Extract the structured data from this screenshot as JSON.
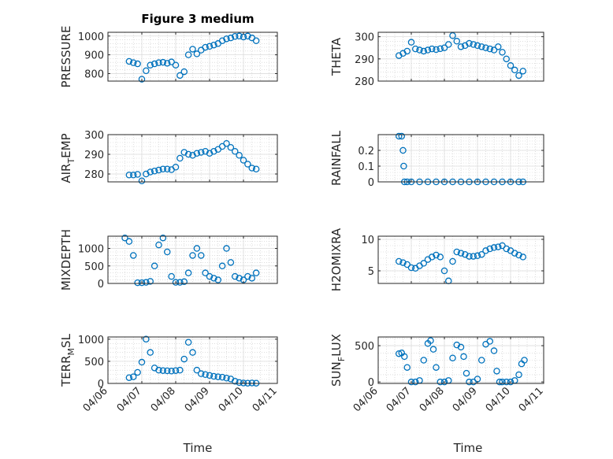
{
  "figure_title": "Figure 3 medium",
  "x_axis_label": "Time",
  "colors": {
    "marker": "#0072BD",
    "axis": "#262626",
    "grid_major": "#dddddd",
    "grid_minor": "#c9c9c9"
  },
  "chart_data": [
    {
      "type": "scatter",
      "panel": "top-left",
      "title": "Figure 3 medium",
      "ylabel": "PRESSURE",
      "ylabel_parts": [
        "PRESSURE"
      ],
      "ylim": [
        760,
        1020
      ],
      "yticks": [
        800,
        900,
        1000
      ],
      "xlim": [
        "04/06",
        "04/11"
      ],
      "xticks": [],
      "xlabel": "",
      "grid": true,
      "minor_grid": true,
      "x": [
        "04/06 15:00",
        "04/06 18:00",
        "04/06 21:00",
        "04/07 00:00",
        "04/07 03:00",
        "04/07 06:00",
        "04/07 09:00",
        "04/07 12:00",
        "04/07 15:00",
        "04/07 18:00",
        "04/07 21:00",
        "04/08 00:00",
        "04/08 03:00",
        "04/08 06:00",
        "04/08 09:00",
        "04/08 12:00",
        "04/08 15:00",
        "04/08 18:00",
        "04/08 21:00",
        "04/09 00:00",
        "04/09 03:00",
        "04/09 06:00",
        "04/09 09:00",
        "04/09 12:00",
        "04/09 15:00",
        "04/09 18:00",
        "04/09 21:00",
        "04/10 00:00",
        "04/10 03:00",
        "04/10 06:00",
        "04/10 09:00"
      ],
      "y": [
        865,
        858,
        852,
        770,
        815,
        845,
        852,
        858,
        860,
        855,
        862,
        845,
        790,
        810,
        900,
        930,
        905,
        925,
        940,
        945,
        952,
        960,
        975,
        985,
        990,
        998,
        1000,
        995,
        1000,
        990,
        975
      ]
    },
    {
      "type": "scatter",
      "panel": "top-right",
      "title": "",
      "ylabel": "THETA",
      "ylabel_parts": [
        "THETA"
      ],
      "ylim": [
        280,
        302
      ],
      "yticks": [
        280,
        290,
        300
      ],
      "xlim": [
        "04/06",
        "04/11"
      ],
      "xticks": [],
      "xlabel": "",
      "grid": true,
      "minor_grid": true,
      "x": [
        "04/06 15:00",
        "04/06 18:00",
        "04/06 21:00",
        "04/07 00:00",
        "04/07 03:00",
        "04/07 06:00",
        "04/07 09:00",
        "04/07 12:00",
        "04/07 15:00",
        "04/07 18:00",
        "04/07 21:00",
        "04/08 00:00",
        "04/08 03:00",
        "04/08 06:00",
        "04/08 09:00",
        "04/08 12:00",
        "04/08 15:00",
        "04/08 18:00",
        "04/08 21:00",
        "04/09 00:00",
        "04/09 03:00",
        "04/09 06:00",
        "04/09 09:00",
        "04/09 12:00",
        "04/09 15:00",
        "04/09 18:00",
        "04/09 21:00",
        "04/10 00:00",
        "04/10 03:00",
        "04/10 06:00",
        "04/10 09:00"
      ],
      "y": [
        291.5,
        292.5,
        293.5,
        297.5,
        294.5,
        294,
        293.5,
        294,
        294.5,
        294.2,
        294.6,
        295,
        296.5,
        300.5,
        298,
        295.5,
        296,
        297,
        296.5,
        296,
        295.5,
        295,
        294.5,
        294,
        295.5,
        293,
        290,
        287,
        285,
        282.5,
        284.5
      ]
    },
    {
      "type": "scatter",
      "panel": "row2-left",
      "title": "",
      "ylabel": "AIR_TEMP",
      "ylabel_parts": [
        "AIR",
        "T",
        "EMP"
      ],
      "ylim": [
        276,
        300
      ],
      "yticks": [
        280,
        290,
        300
      ],
      "xlim": [
        "04/06",
        "04/11"
      ],
      "xticks": [],
      "xlabel": "",
      "grid": true,
      "minor_grid": true,
      "x": [
        "04/06 15:00",
        "04/06 18:00",
        "04/06 21:00",
        "04/07 00:00",
        "04/07 03:00",
        "04/07 06:00",
        "04/07 09:00",
        "04/07 12:00",
        "04/07 15:00",
        "04/07 18:00",
        "04/07 21:00",
        "04/08 00:00",
        "04/08 03:00",
        "04/08 06:00",
        "04/08 09:00",
        "04/08 12:00",
        "04/08 15:00",
        "04/08 18:00",
        "04/08 21:00",
        "04/09 00:00",
        "04/09 03:00",
        "04/09 06:00",
        "04/09 09:00",
        "04/09 12:00",
        "04/09 15:00",
        "04/09 18:00",
        "04/09 21:00",
        "04/10 00:00",
        "04/10 03:00",
        "04/10 06:00",
        "04/10 09:00"
      ],
      "y": [
        279.5,
        279.5,
        279.8,
        276.5,
        280,
        281,
        281.5,
        282,
        282.5,
        282.5,
        282.2,
        283.5,
        288,
        291,
        290,
        289.5,
        290.5,
        291,
        291.5,
        290.5,
        291.5,
        292.5,
        294,
        295.5,
        293.5,
        291.5,
        289.5,
        287,
        285,
        283,
        282.5
      ]
    },
    {
      "type": "scatter",
      "panel": "row2-right",
      "title": "",
      "ylabel": "RAINFALL",
      "ylabel_parts": [
        "RAINFALL"
      ],
      "ylim": [
        0,
        0.3
      ],
      "yticks": [
        0,
        0.1,
        0.2
      ],
      "xlim": [
        "04/06",
        "04/11"
      ],
      "xticks": [],
      "xlabel": "",
      "grid": true,
      "minor_grid": true,
      "x": [
        "04/06 15:00",
        "04/06 17:00",
        "04/06 18:00",
        "04/06 18:30",
        "04/06 19:00",
        "04/06 21:00",
        "04/07 00:00",
        "04/07 06:00",
        "04/07 12:00",
        "04/07 18:00",
        "04/08 00:00",
        "04/08 06:00",
        "04/08 12:00",
        "04/08 18:00",
        "04/09 00:00",
        "04/09 06:00",
        "04/09 12:00",
        "04/09 18:00",
        "04/10 00:00",
        "04/10 06:00",
        "04/10 09:00"
      ],
      "y": [
        0.29,
        0.29,
        0.2,
        0.1,
        0,
        0,
        0,
        0,
        0,
        0,
        0,
        0,
        0,
        0,
        0,
        0,
        0,
        0,
        0,
        0,
        0
      ]
    },
    {
      "type": "scatter",
      "panel": "row3-left",
      "title": "",
      "ylabel": "MIXDEPTH",
      "ylabel_parts": [
        "MIXDEPTH"
      ],
      "ylim": [
        0,
        1350
      ],
      "yticks": [
        0,
        500,
        1000
      ],
      "xlim": [
        "04/06",
        "04/11"
      ],
      "xticks": [],
      "xlabel": "",
      "grid": true,
      "minor_grid": true,
      "x": [
        "04/06 12:00",
        "04/06 15:00",
        "04/06 18:00",
        "04/06 21:00",
        "04/07 00:00",
        "04/07 03:00",
        "04/07 06:00",
        "04/07 09:00",
        "04/07 12:00",
        "04/07 15:00",
        "04/07 18:00",
        "04/07 21:00",
        "04/08 00:00",
        "04/08 03:00",
        "04/08 06:00",
        "04/08 09:00",
        "04/08 12:00",
        "04/08 15:00",
        "04/08 18:00",
        "04/08 21:00",
        "04/09 00:00",
        "04/09 03:00",
        "04/09 06:00",
        "04/09 09:00",
        "04/09 12:00",
        "04/09 15:00",
        "04/09 18:00",
        "04/09 21:00",
        "04/10 00:00",
        "04/10 03:00",
        "04/10 06:00",
        "04/10 09:00"
      ],
      "y": [
        1300,
        1200,
        800,
        20,
        20,
        30,
        60,
        500,
        1100,
        1300,
        900,
        200,
        30,
        30,
        50,
        300,
        800,
        1000,
        800,
        300,
        200,
        150,
        100,
        500,
        1000,
        600,
        200,
        150,
        100,
        200,
        150,
        300
      ]
    },
    {
      "type": "scatter",
      "panel": "row3-right",
      "title": "",
      "ylabel": "H2OMIXRA",
      "ylabel_parts": [
        "H2OMIXRA"
      ],
      "ylim": [
        3,
        10.5
      ],
      "yticks": [
        5,
        10
      ],
      "xlim": [
        "04/06",
        "04/11"
      ],
      "xticks": [],
      "xlabel": "",
      "grid": true,
      "minor_grid": true,
      "x": [
        "04/06 15:00",
        "04/06 18:00",
        "04/06 21:00",
        "04/07 00:00",
        "04/07 03:00",
        "04/07 06:00",
        "04/07 09:00",
        "04/07 12:00",
        "04/07 15:00",
        "04/07 18:00",
        "04/07 21:00",
        "04/08 00:00",
        "04/08 03:00",
        "04/08 06:00",
        "04/08 09:00",
        "04/08 12:00",
        "04/08 15:00",
        "04/08 18:00",
        "04/08 21:00",
        "04/09 00:00",
        "04/09 03:00",
        "04/09 06:00",
        "04/09 09:00",
        "04/09 12:00",
        "04/09 15:00",
        "04/09 18:00",
        "04/09 21:00",
        "04/10 00:00",
        "04/10 03:00",
        "04/10 06:00",
        "04/10 09:00"
      ],
      "y": [
        6.5,
        6.3,
        6,
        5.5,
        5.4,
        5.8,
        6.2,
        6.8,
        7.2,
        7.5,
        7.2,
        5,
        3.4,
        6.5,
        8,
        7.8,
        7.6,
        7.3,
        7.3,
        7.4,
        7.6,
        8.2,
        8.5,
        8.7,
        8.8,
        9,
        8.5,
        8.2,
        7.8,
        7.5,
        7.2
      ]
    },
    {
      "type": "scatter",
      "panel": "bottom-left",
      "title": "",
      "ylabel": "TERR_MSL",
      "ylabel_parts": [
        "TERR",
        "M",
        "SL"
      ],
      "ylim": [
        0,
        1050
      ],
      "yticks": [
        0,
        500,
        1000
      ],
      "xlim": [
        "04/06",
        "04/11"
      ],
      "xticks": [
        "04/06",
        "04/07",
        "04/08",
        "04/09",
        "04/10",
        "04/11"
      ],
      "xlabel": "Time",
      "grid": true,
      "minor_grid": true,
      "x": [
        "04/06 15:00",
        "04/06 18:00",
        "04/06 21:00",
        "04/07 00:00",
        "04/07 03:00",
        "04/07 06:00",
        "04/07 09:00",
        "04/07 12:00",
        "04/07 15:00",
        "04/07 18:00",
        "04/07 21:00",
        "04/08 00:00",
        "04/08 03:00",
        "04/08 06:00",
        "04/08 09:00",
        "04/08 12:00",
        "04/08 15:00",
        "04/08 18:00",
        "04/08 21:00",
        "04/09 00:00",
        "04/09 03:00",
        "04/09 06:00",
        "04/09 09:00",
        "04/09 12:00",
        "04/09 15:00",
        "04/09 18:00",
        "04/09 21:00",
        "04/10 00:00",
        "04/10 03:00",
        "04/10 06:00",
        "04/10 09:00"
      ],
      "y": [
        130,
        150,
        250,
        480,
        1000,
        700,
        350,
        300,
        290,
        285,
        280,
        290,
        300,
        550,
        930,
        700,
        300,
        220,
        200,
        180,
        160,
        150,
        140,
        120,
        100,
        50,
        20,
        10,
        5,
        10,
        5
      ]
    },
    {
      "type": "scatter",
      "panel": "bottom-right",
      "title": "",
      "ylabel": "SUN_FLUX",
      "ylabel_parts": [
        "SUN",
        "F",
        "LUX"
      ],
      "ylim": [
        -20,
        620
      ],
      "yticks": [
        0,
        500
      ],
      "xlim": [
        "04/06",
        "04/11"
      ],
      "xticks": [
        "04/06",
        "04/07",
        "04/08",
        "04/09",
        "04/10",
        "04/11"
      ],
      "xlabel": "Time",
      "grid": true,
      "minor_grid": true,
      "x": [
        "04/06 15:00",
        "04/06 17:00",
        "04/06 19:00",
        "04/06 21:00",
        "04/07 00:00",
        "04/07 03:00",
        "04/07 06:00",
        "04/07 09:00",
        "04/07 12:00",
        "04/07 14:00",
        "04/07 16:00",
        "04/07 18:00",
        "04/07 21:00",
        "04/08 00:00",
        "04/08 03:00",
        "04/08 06:00",
        "04/08 09:00",
        "04/08 12:00",
        "04/08 14:00",
        "04/08 16:00",
        "04/08 18:00",
        "04/08 21:00",
        "04/09 00:00",
        "04/09 03:00",
        "04/09 06:00",
        "04/09 09:00",
        "04/09 12:00",
        "04/09 14:00",
        "04/09 16:00",
        "04/09 18:00",
        "04/09 21:00",
        "04/10 00:00",
        "04/10 03:00",
        "04/10 06:00",
        "04/10 08:00",
        "04/10 10:00"
      ],
      "y": [
        390,
        400,
        350,
        200,
        0,
        0,
        20,
        300,
        530,
        570,
        450,
        200,
        0,
        0,
        20,
        330,
        510,
        480,
        350,
        120,
        0,
        0,
        40,
        300,
        520,
        560,
        430,
        150,
        0,
        0,
        0,
        0,
        20,
        100,
        250,
        300
      ]
    }
  ]
}
